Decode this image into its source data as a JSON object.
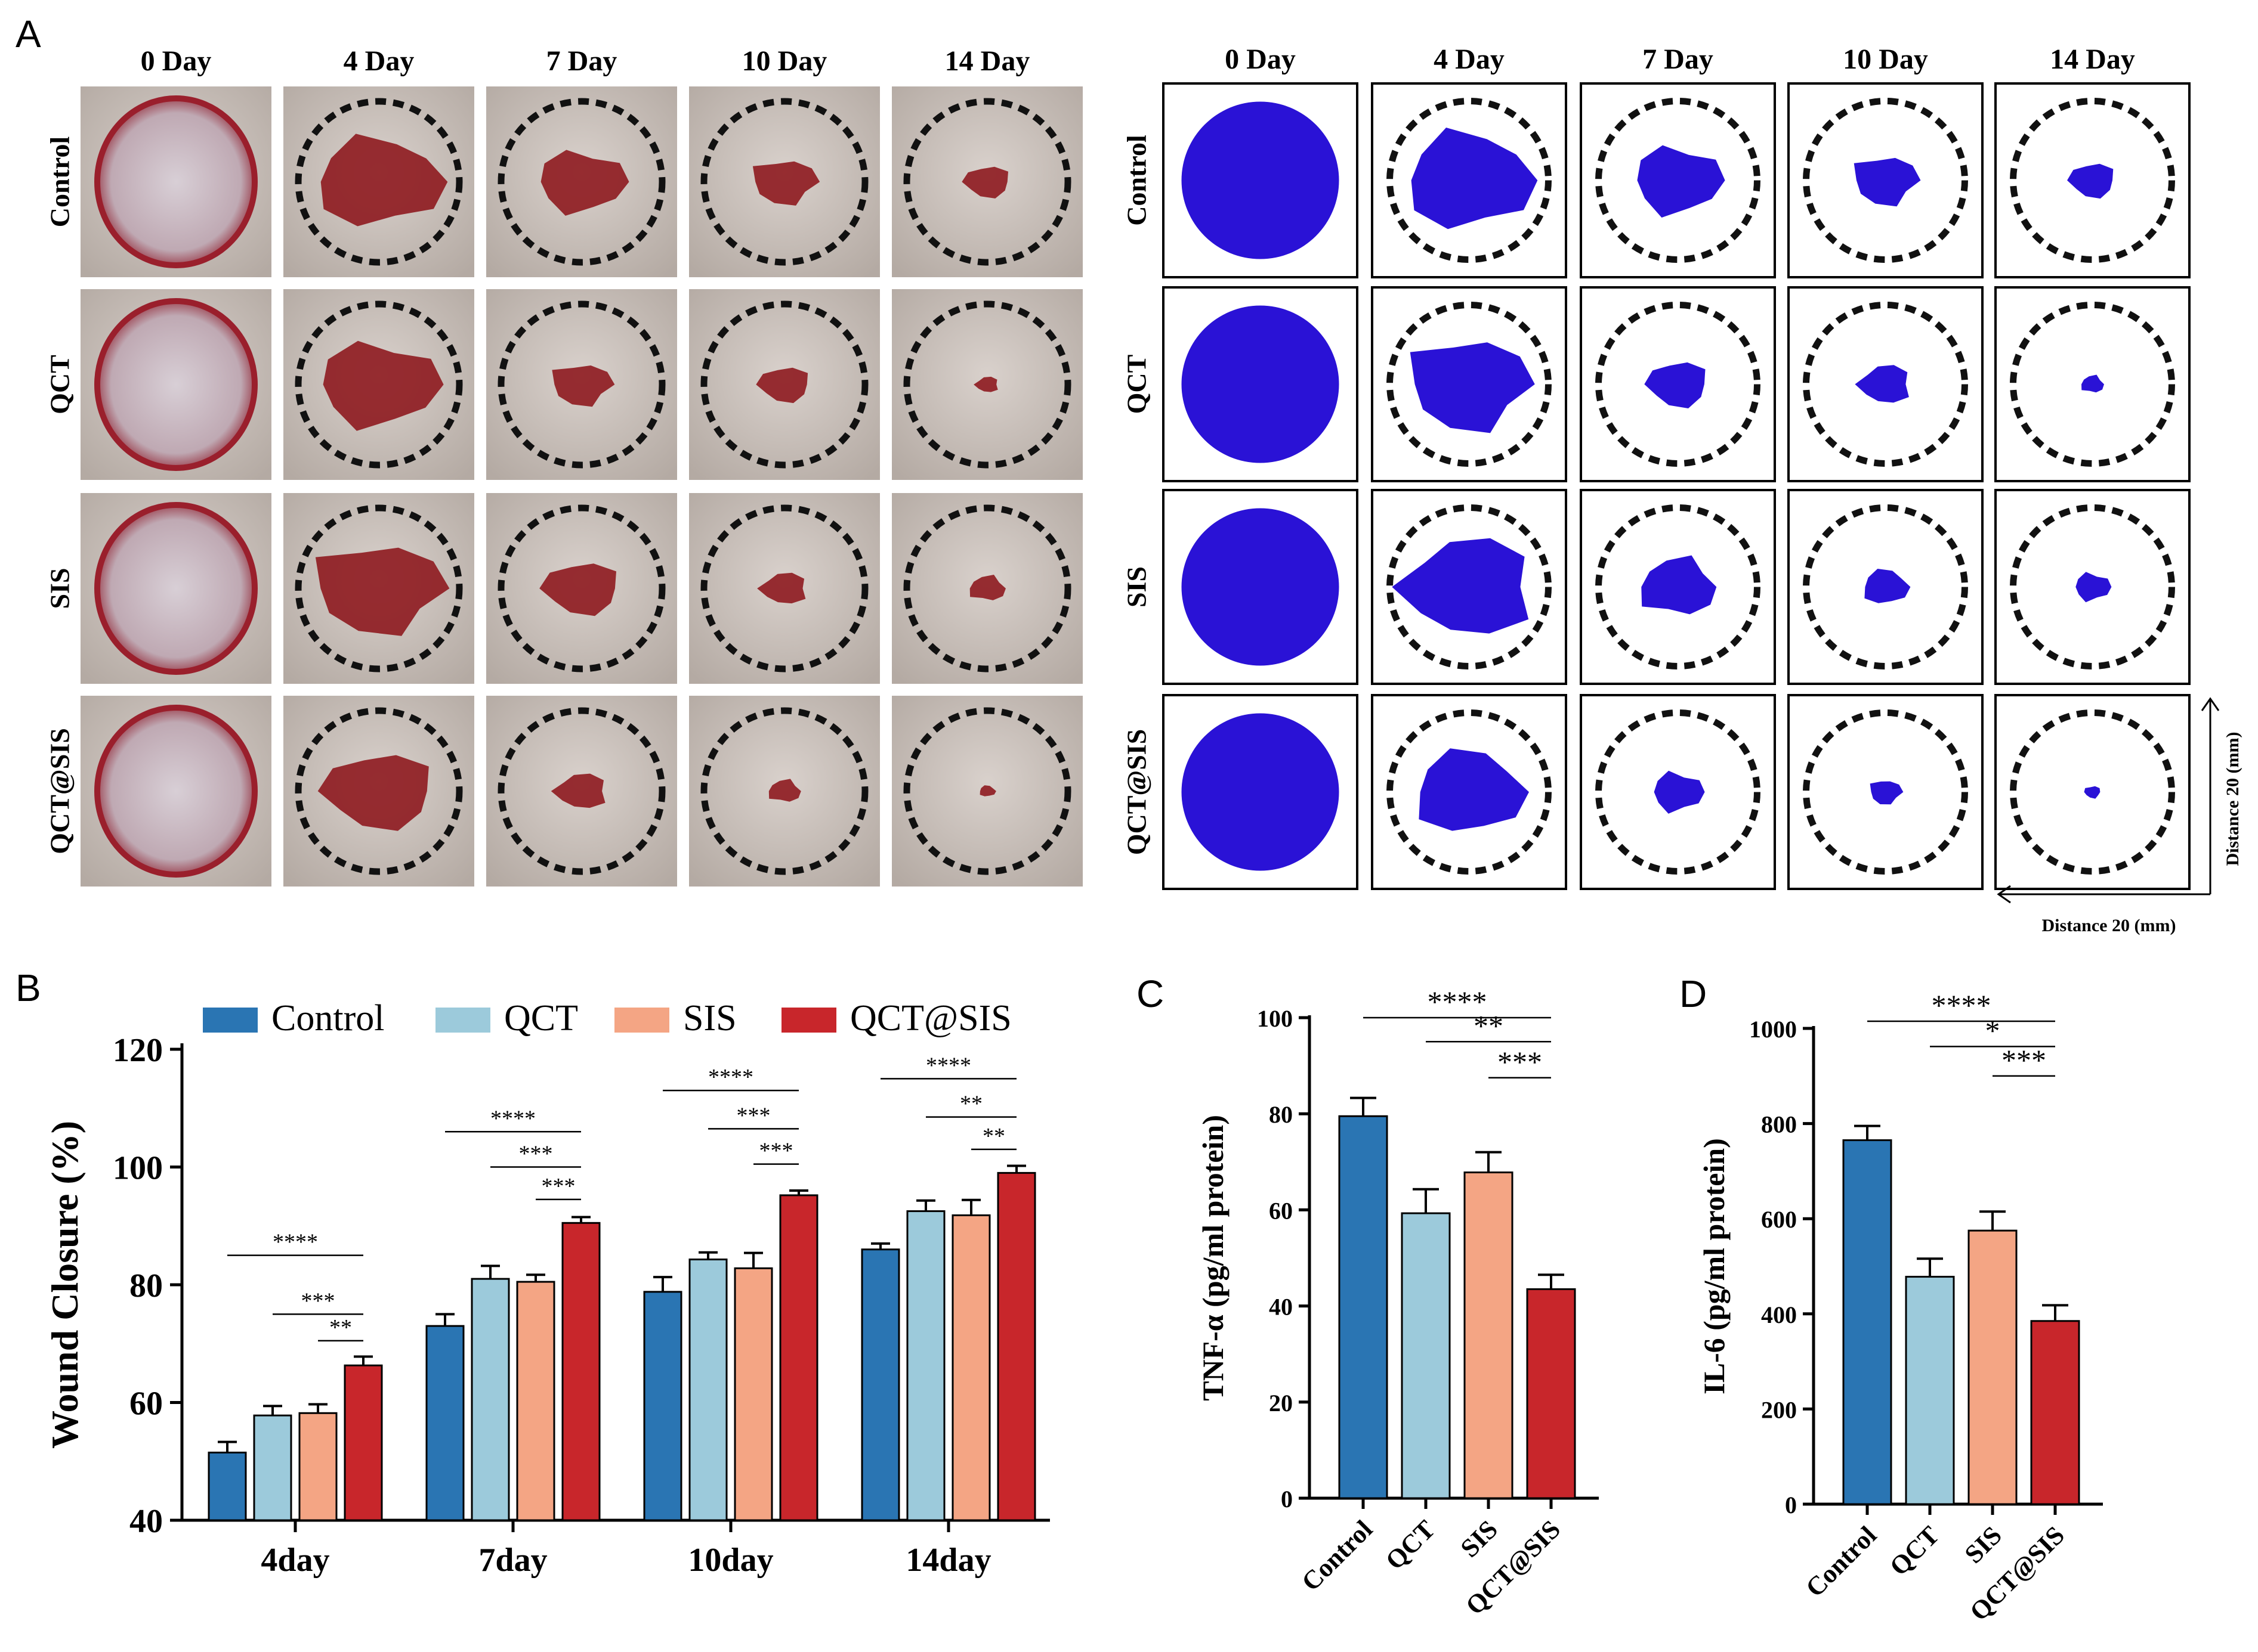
{
  "panels": {
    "a": "A",
    "b": "B",
    "c": "C",
    "d": "D"
  },
  "panel_a": {
    "days": [
      "0 Day",
      "4 Day",
      "7 Day",
      "10 Day",
      "14 Day"
    ],
    "groups": [
      "Control",
      "QCT",
      "SIS",
      "QCT@SIS"
    ],
    "scale_vertical": "Distance 20 (mm)",
    "scale_horizontal": "Distance 20 (mm)",
    "colors": {
      "wound_fill": "#2a12d6",
      "dashed_ring": "#111111",
      "photo_skin": "#c9c0ba",
      "wound_red": "#8e1a1f"
    },
    "wound_area_fraction": [
      [
        1.0,
        0.62,
        0.3,
        0.16,
        0.08
      ],
      [
        1.0,
        0.56,
        0.14,
        0.1,
        0.02
      ],
      [
        1.0,
        0.64,
        0.22,
        0.08,
        0.05
      ],
      [
        1.0,
        0.46,
        0.1,
        0.04,
        0.01
      ]
    ]
  },
  "chart_data": [
    {
      "type": "bar",
      "panel": "B",
      "categories": [
        "4day",
        "7day",
        "10day",
        "14day"
      ],
      "series": [
        {
          "name": "Control",
          "color": "#2a75b3",
          "values": [
            51.5,
            73.0,
            78.8,
            86.0
          ],
          "errors": [
            1.8,
            2.0,
            2.5,
            1.0
          ]
        },
        {
          "name": "QCT",
          "color": "#9ccadb",
          "values": [
            57.8,
            81.0,
            84.3,
            92.5
          ],
          "errors": [
            1.6,
            2.2,
            1.2,
            1.8
          ]
        },
        {
          "name": "SIS",
          "color": "#f4a584",
          "values": [
            58.2,
            80.5,
            82.8,
            91.8
          ],
          "errors": [
            1.5,
            1.2,
            2.6,
            2.6
          ]
        },
        {
          "name": "QCT@SIS",
          "color": "#c8262b",
          "values": [
            66.3,
            90.5,
            95.2,
            99.0
          ],
          "errors": [
            1.5,
            1.0,
            0.8,
            1.2
          ]
        }
      ],
      "ylabel": "Wound Closure (%)",
      "ylim": [
        40,
        120
      ],
      "yticks": [
        "40",
        "60",
        "80",
        "100",
        "120"
      ],
      "significance": [
        {
          "group": 0,
          "from": 0,
          "to": 3,
          "label": "****",
          "y": 85
        },
        {
          "group": 0,
          "from": 1,
          "to": 3,
          "label": "***",
          "y": 75
        },
        {
          "group": 0,
          "from": 2,
          "to": 3,
          "label": "**",
          "y": 70.5
        },
        {
          "group": 1,
          "from": 0,
          "to": 3,
          "label": "****",
          "y": 106
        },
        {
          "group": 1,
          "from": 1,
          "to": 3,
          "label": "***",
          "y": 100
        },
        {
          "group": 1,
          "from": 2,
          "to": 3,
          "label": "***",
          "y": 94.5
        },
        {
          "group": 2,
          "from": 0,
          "to": 3,
          "label": "****",
          "y": 113
        },
        {
          "group": 2,
          "from": 1,
          "to": 3,
          "label": "***",
          "y": 106.5
        },
        {
          "group": 2,
          "from": 2,
          "to": 3,
          "label": "***",
          "y": 100.5
        },
        {
          "group": 3,
          "from": 0,
          "to": 3,
          "label": "****",
          "y": 115
        },
        {
          "group": 3,
          "from": 1,
          "to": 3,
          "label": "**",
          "y": 108.5
        },
        {
          "group": 3,
          "from": 2,
          "to": 3,
          "label": "**",
          "y": 103
        }
      ]
    },
    {
      "type": "bar",
      "panel": "C",
      "categories": [
        "Control",
        "QCT",
        "SIS",
        "QCT@SIS"
      ],
      "colors": [
        "#2a75b3",
        "#9ccadb",
        "#f4a584",
        "#c8262b"
      ],
      "values": [
        79.5,
        59.3,
        67.8,
        43.5
      ],
      "errors": [
        3.8,
        5.0,
        4.2,
        3.0
      ],
      "ylabel": "TNF-α (pg/ml protein)",
      "ylim": [
        0,
        100
      ],
      "yticks": [
        "0",
        "20",
        "40",
        "60",
        "80",
        "100"
      ],
      "significance": [
        {
          "from": 0,
          "to": 3,
          "label": "****",
          "y": 100
        },
        {
          "from": 1,
          "to": 3,
          "label": "**",
          "y": 95
        },
        {
          "from": 2,
          "to": 3,
          "label": "***",
          "y": 87.5
        }
      ]
    },
    {
      "type": "bar",
      "panel": "D",
      "categories": [
        "Control",
        "QCT",
        "SIS",
        "QCT@SIS"
      ],
      "colors": [
        "#2a75b3",
        "#9ccadb",
        "#f4a584",
        "#c8262b"
      ],
      "values": [
        765,
        478,
        575,
        385
      ],
      "errors": [
        30,
        38,
        40,
        33
      ],
      "ylabel": "IL-6 (pg/ml protein)",
      "ylim": [
        0,
        1000
      ],
      "yticks": [
        "0",
        "200",
        "400",
        "600",
        "800",
        "1000"
      ],
      "significance": [
        {
          "from": 0,
          "to": 3,
          "label": "****",
          "y": 1015
        },
        {
          "from": 1,
          "to": 3,
          "label": "*",
          "y": 962
        },
        {
          "from": 2,
          "to": 3,
          "label": "***",
          "y": 900
        }
      ]
    }
  ]
}
